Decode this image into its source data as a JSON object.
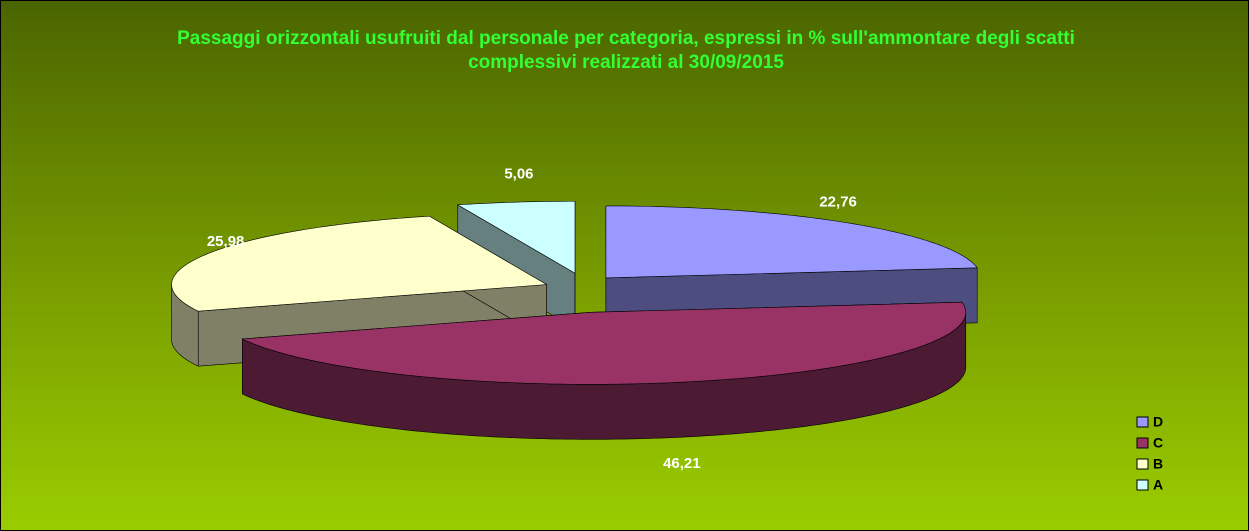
{
  "chart_data": {
    "type": "pie3d",
    "title": "Passaggi orizzontali usufruiti dal personale per categoria, espressi in % sull'ammontare degli scatti complessivi realizzati al 30/09/2015",
    "categories": [
      "D",
      "C",
      "B",
      "A"
    ],
    "values": [
      22.76,
      46.21,
      25.98,
      5.06
    ],
    "value_labels": [
      "22,76",
      "46,21",
      "25,98",
      "5,06"
    ],
    "colors": [
      "#9999ff",
      "#993366",
      "#ffffcc",
      "#ccffff"
    ],
    "legend": "right"
  }
}
